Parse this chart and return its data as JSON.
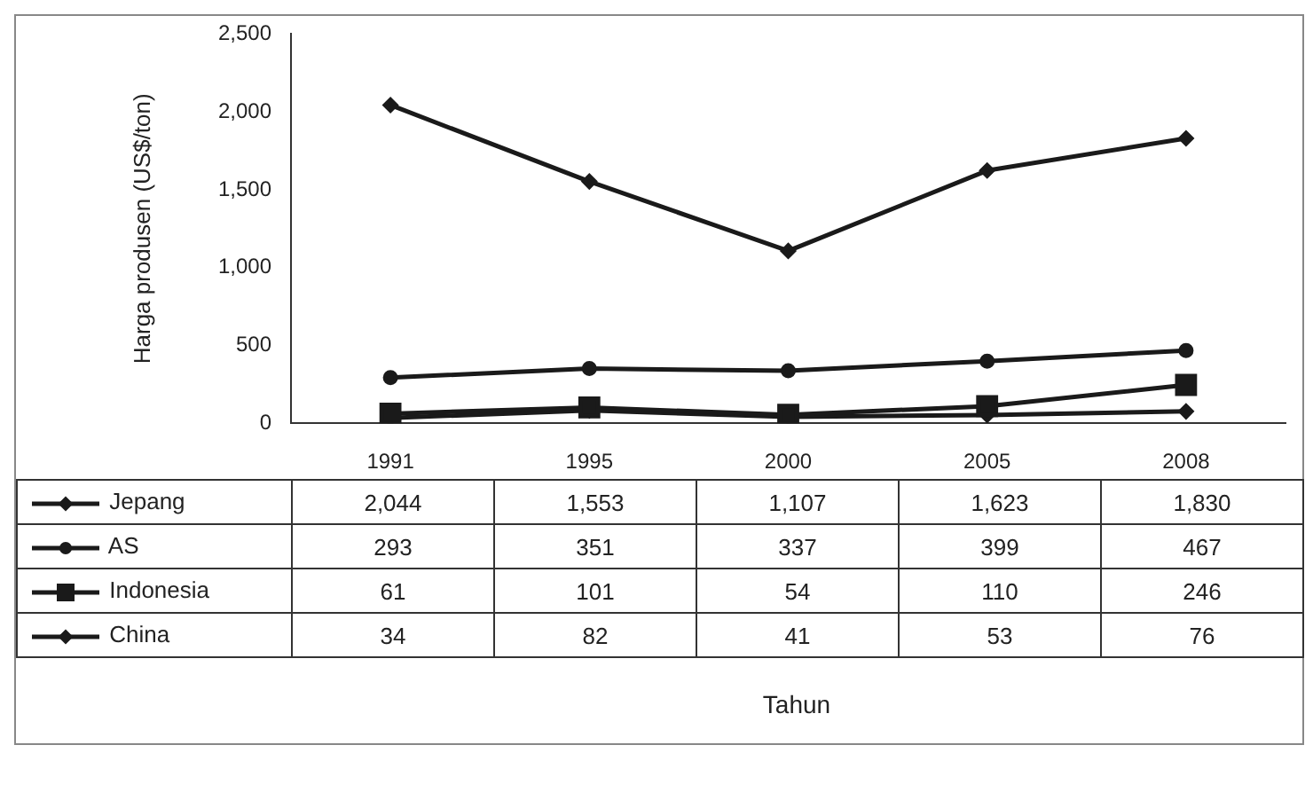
{
  "chart_data": {
    "type": "line",
    "ylabel": "Harga produsen (US$/ton)",
    "annotations": [
      "Tahun"
    ],
    "categories": [
      "1991",
      "1995",
      "2000",
      "2005",
      "2008"
    ],
    "series": [
      {
        "name": "Jepang",
        "color": "#1a1a1a",
        "marker": "diamond",
        "values": [
          2044,
          1553,
          1107,
          1623,
          1830
        ],
        "value_labels": [
          "2,044",
          "1,553",
          "1,107",
          "1,623",
          "1,830"
        ]
      },
      {
        "name": "AS",
        "color": "#1a1a1a",
        "marker": "circle",
        "values": [
          293,
          351,
          337,
          399,
          467
        ],
        "value_labels": [
          "293",
          "351",
          "337",
          "399",
          "467"
        ]
      },
      {
        "name": "Indonesia",
        "color": "#1a1a1a",
        "marker": "square",
        "values": [
          61,
          101,
          54,
          110,
          246
        ],
        "value_labels": [
          "61",
          "101",
          "54",
          "110",
          "246"
        ]
      },
      {
        "name": "China",
        "color": "#1a1a1a",
        "marker": "diamond",
        "values": [
          34,
          82,
          41,
          53,
          76
        ],
        "value_labels": [
          "34",
          "82",
          "41",
          "53",
          "76"
        ]
      }
    ],
    "ylim": [
      0,
      2500
    ],
    "yticks": [
      0,
      500,
      {
        "value": 1000,
        "label": "1,000"
      },
      {
        "value": 1500,
        "label": "1,500"
      },
      {
        "value": 2000,
        "label": "2,000"
      },
      {
        "value": 2500,
        "label": "2,500"
      }
    ],
    "grid": false,
    "legend": "bottom left",
    "line_style": "solid"
  }
}
